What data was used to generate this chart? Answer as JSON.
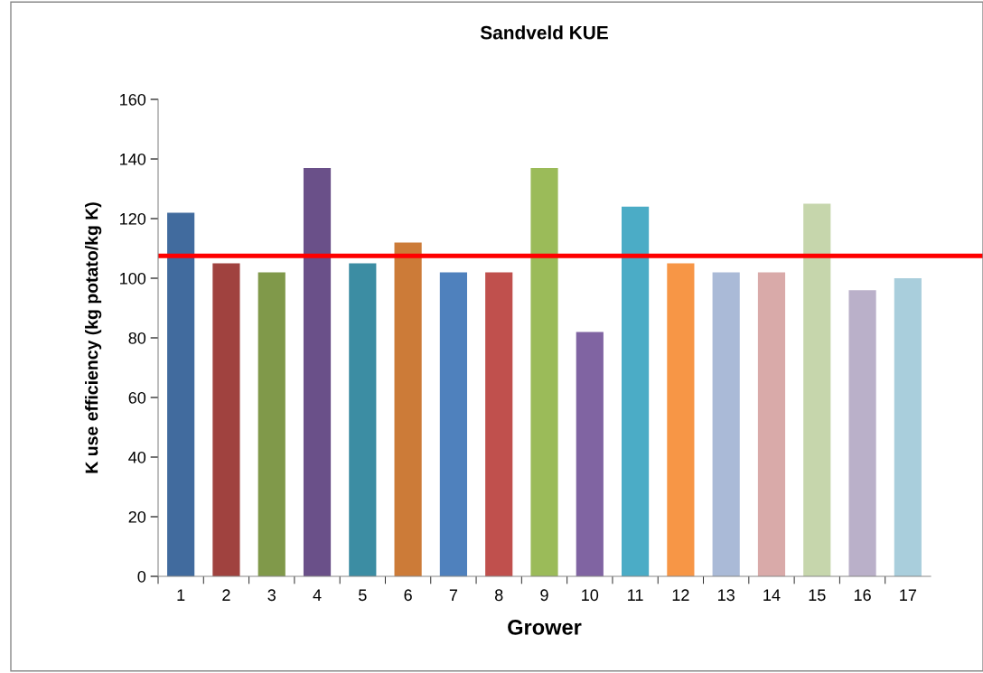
{
  "chart_data": {
    "type": "bar",
    "title": "Sandveld KUE",
    "xlabel": "Grower",
    "ylabel": "K use efficiency (kg potato/kg K)",
    "categories": [
      "1",
      "2",
      "3",
      "4",
      "5",
      "6",
      "7",
      "8",
      "9",
      "10",
      "11",
      "12",
      "13",
      "14",
      "15",
      "16",
      "17"
    ],
    "values": [
      122,
      105,
      102,
      137,
      105,
      112,
      102,
      102,
      137,
      82,
      124,
      105,
      102,
      102,
      125,
      96,
      100
    ],
    "colors": [
      "#416b9e",
      "#a0423f",
      "#80994a",
      "#6a5089",
      "#3c8da3",
      "#cc7b38",
      "#4f81bd",
      "#c0504d",
      "#9bbb59",
      "#8064a2",
      "#4bacc6",
      "#f79646",
      "#aabad7",
      "#d9aaa9",
      "#c6d6ac",
      "#bab0c9",
      "#a9cedc"
    ],
    "ylim": [
      0,
      160
    ],
    "yticks": [
      0,
      20,
      40,
      60,
      80,
      100,
      120,
      140,
      160
    ],
    "grid": false,
    "ref_lines": [
      {
        "axis": "y",
        "value": 107.5,
        "color": "#ff0000",
        "line_style": "solid"
      }
    ]
  }
}
